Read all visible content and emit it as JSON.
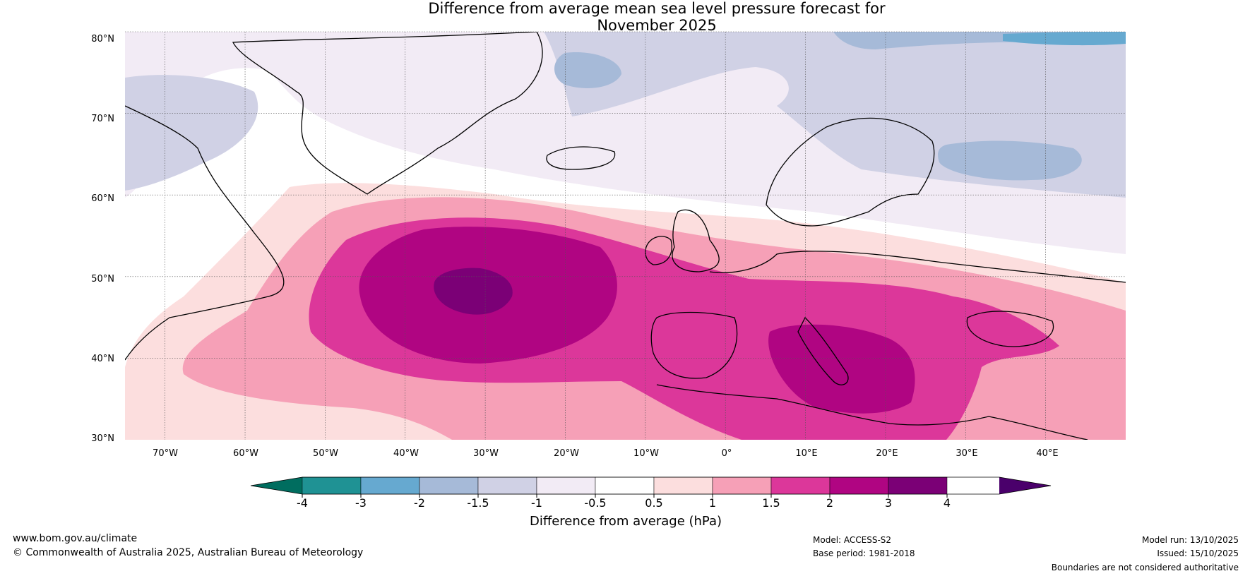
{
  "title": {
    "line1": "Difference from average mean sea level pressure forecast for",
    "line2": "November 2025"
  },
  "map": {
    "latitude_labels": [
      "80°N",
      "70°N",
      "60°N",
      "50°N",
      "40°N",
      "30°N"
    ],
    "longitude_labels": [
      "70°W",
      "60°W",
      "50°W",
      "40°W",
      "30°W",
      "20°W",
      "10°W",
      "0°",
      "10°E",
      "20°E",
      "30°E",
      "40°E"
    ],
    "extent": {
      "lon_min": -75,
      "lon_max": 50,
      "lat_min": 30,
      "lat_max": 80
    }
  },
  "colorbar": {
    "ticks": [
      "-4",
      "-3",
      "-2",
      "-1.5",
      "-1",
      "-0.5",
      "0.5",
      "1",
      "1.5",
      "2",
      "3",
      "4"
    ],
    "colors": [
      "#006d5f",
      "#1f9294",
      "#66a9d0",
      "#a6bad8",
      "#d0d1e5",
      "#f2ebf5",
      "#ffffff",
      "#fcdede",
      "#f6a0b7",
      "#dc379a",
      "#b00582",
      "#7b0076",
      "#4a006b"
    ],
    "label": "Difference from average (hPa)"
  },
  "footer": {
    "website": "www.bom.gov.au/climate",
    "copyright": "© Commonwealth of Australia 2025, Australian Bureau of Meteorology",
    "model": "Model: ACCESS-S2",
    "base_period": "Base period: 1981-2018",
    "model_run": "Model run: 13/10/2025",
    "issued": "Issued: 15/10/2025",
    "disclaimer": "Boundaries are not considered authoritative"
  }
}
